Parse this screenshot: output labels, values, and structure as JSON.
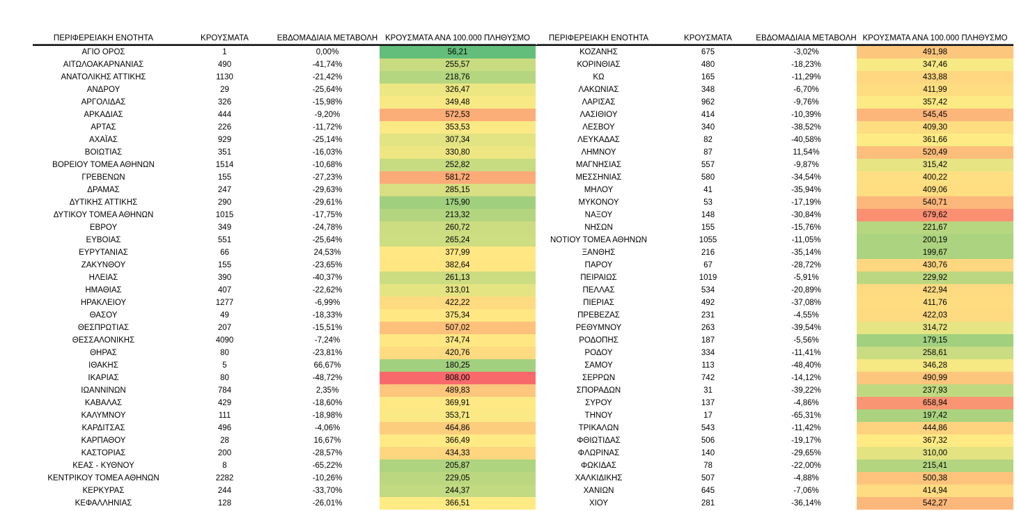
{
  "page": {
    "background": "#ffffff"
  },
  "chart_data": {
    "type": "table",
    "title": "",
    "columns": [
      "ΠΕΡΙΦΕΡΕΙΑΚΗ ΕΝΟΤΗΤΑ",
      "ΚΡΟΥΣΜΑΤΑ",
      "ΕΒΔΟΜΑΔΙΑΙΑ ΜΕΤΑΒΟΛΗ",
      "ΚΡΟΥΣΜΑΤΑ ΑΝΑ 100.000 ΠΛΗΘΥΣΜΟ"
    ],
    "heatmap": {
      "applies_to_column": "ΚΡΟΥΣΜΑΤΑ ΑΝΑ 100.000 ΠΛΗΘΥΣΜΟ",
      "min": 56.21,
      "mid": 364.08,
      "max": 808.0,
      "min_color": "#63BE7B",
      "mid_color": "#FFEB84",
      "max_color": "#F8696B"
    },
    "tables": [
      {
        "rows": [
          [
            "ΑΓΙΟ ΟΡΟΣ",
            "1",
            "0,00%",
            56.21
          ],
          [
            "ΑΙΤΩΛΟΑΚΑΡΝΑΝΙΑΣ",
            "490",
            "-41,74%",
            255.57
          ],
          [
            "ΑΝΑΤΟΛΙΚΗΣ ΑΤΤΙΚΗΣ",
            "1130",
            "-21,42%",
            218.76
          ],
          [
            "ΑΝΔΡΟΥ",
            "29",
            "-25,64%",
            326.47
          ],
          [
            "ΑΡΓΟΛΙΔΑΣ",
            "326",
            "-15,98%",
            349.48
          ],
          [
            "ΑΡΚΑΔΙΑΣ",
            "444",
            "-9,20%",
            572.53
          ],
          [
            "ΑΡΤΑΣ",
            "226",
            "-11,72%",
            353.53
          ],
          [
            "ΑΧΑΪΑΣ",
            "929",
            "-25,14%",
            307.34
          ],
          [
            "ΒΟΙΩΤΙΑΣ",
            "351",
            "-16,03%",
            330.8
          ],
          [
            "ΒΟΡΕΙΟΥ ΤΟΜΕΑ ΑΘΗΝΩΝ",
            "1514",
            "-10,68%",
            252.82
          ],
          [
            "ΓΡΕΒΕΝΩΝ",
            "155",
            "-27,23%",
            581.72
          ],
          [
            "ΔΡΑΜΑΣ",
            "247",
            "-29,63%",
            285.15
          ],
          [
            "ΔΥΤΙΚΗΣ ΑΤΤΙΚΗΣ",
            "290",
            "-29,61%",
            175.9
          ],
          [
            "ΔΥΤΙΚΟΥ ΤΟΜΕΑ ΑΘΗΝΩΝ",
            "1015",
            "-17,75%",
            213.32
          ],
          [
            "ΕΒΡΟΥ",
            "349",
            "-24,78%",
            260.72
          ],
          [
            "ΕΥΒΟΙΑΣ",
            "551",
            "-25,64%",
            265.24
          ],
          [
            "ΕΥΡΥΤΑΝΙΑΣ",
            "66",
            "24,53%",
            377.99
          ],
          [
            "ΖΑΚΥΝΘΟΥ",
            "155",
            "-23,65%",
            382.64
          ],
          [
            "ΗΛΕΙΑΣ",
            "390",
            "-40,37%",
            261.13
          ],
          [
            "ΗΜΑΘΙΑΣ",
            "407",
            "-22,62%",
            313.01
          ],
          [
            "ΗΡΑΚΛΕΙΟΥ",
            "1277",
            "-6,99%",
            422.22
          ],
          [
            "ΘΑΣΟΥ",
            "49",
            "-18,33%",
            375.34
          ],
          [
            "ΘΕΣΠΡΩΤΙΑΣ",
            "207",
            "-15,51%",
            507.02
          ],
          [
            "ΘΕΣΣΑΛΟΝΙΚΗΣ",
            "4090",
            "-7,24%",
            374.74
          ],
          [
            "ΘΗΡΑΣ",
            "80",
            "-23,81%",
            420.76
          ],
          [
            "ΙΘΑΚΗΣ",
            "5",
            "66,67%",
            180.25
          ],
          [
            "ΙΚΑΡΙΑΣ",
            "80",
            "-48,72%",
            808.0
          ],
          [
            "ΙΩΑΝΝΙΝΩΝ",
            "784",
            "2,35%",
            489.83
          ],
          [
            "ΚΑΒΑΛΑΣ",
            "429",
            "-18,60%",
            369.91
          ],
          [
            "ΚΑΛΥΜΝΟΥ",
            "111",
            "-18,98%",
            353.71
          ],
          [
            "ΚΑΡΔΙΤΣΑΣ",
            "496",
            "-4,06%",
            464.86
          ],
          [
            "ΚΑΡΠΑΘΟΥ",
            "28",
            "16,67%",
            366.49
          ],
          [
            "ΚΑΣΤΟΡΙΑΣ",
            "200",
            "-28,57%",
            434.33
          ],
          [
            "ΚΕΑΣ - ΚΥΘΝΟΥ",
            "8",
            "-65,22%",
            205.87
          ],
          [
            "ΚΕΝΤΡΙΚΟΥ ΤΟΜΕΑ ΑΘΗΝΩΝ",
            "2282",
            "-10,26%",
            229.05
          ],
          [
            "ΚΕΡΚΥΡΑΣ",
            "244",
            "-33,70%",
            244.37
          ],
          [
            "ΚΕΦΑΛΛΗΝΙΑΣ",
            "128",
            "-26,01%",
            366.51
          ]
        ]
      },
      {
        "rows": [
          [
            "ΚΟΖΑΝΗΣ",
            "675",
            "-3,02%",
            491.98
          ],
          [
            "ΚΟΡΙΝΘΙΑΣ",
            "480",
            "-18,23%",
            347.46
          ],
          [
            "ΚΩ",
            "165",
            "-11,29%",
            433.88
          ],
          [
            "ΛΑΚΩΝΙΑΣ",
            "348",
            "-6,70%",
            411.99
          ],
          [
            "ΛΑΡΙΣΑΣ",
            "962",
            "-9,76%",
            357.42
          ],
          [
            "ΛΑΣΙΘΙΟΥ",
            "414",
            "-10,39%",
            545.45
          ],
          [
            "ΛΕΣΒΟΥ",
            "340",
            "-38,52%",
            409.3
          ],
          [
            "ΛΕΥΚΑΔΑΣ",
            "82",
            "-40,58%",
            361.66
          ],
          [
            "ΛΗΜΝΟΥ",
            "87",
            "11,54%",
            520.49
          ],
          [
            "ΜΑΓΝΗΣΙΑΣ",
            "557",
            "-9,87%",
            315.42
          ],
          [
            "ΜΕΣΣΗΝΙΑΣ",
            "580",
            "-34,54%",
            400.22
          ],
          [
            "ΜΗΛΟΥ",
            "41",
            "-35,94%",
            409.06
          ],
          [
            "ΜΥΚΟΝΟΥ",
            "53",
            "-17,19%",
            540.71
          ],
          [
            "ΝΑΞΟΥ",
            "148",
            "-30,84%",
            679.62
          ],
          [
            "ΝΗΣΩΝ",
            "155",
            "-15,76%",
            221.67
          ],
          [
            "ΝΟΤΙΟΥ ΤΟΜΕΑ ΑΘΗΝΩΝ",
            "1055",
            "-11,05%",
            200.19
          ],
          [
            "ΞΑΝΘΗΣ",
            "216",
            "-35,14%",
            199.67
          ],
          [
            "ΠΑΡΟΥ",
            "67",
            "-28,72%",
            430.76
          ],
          [
            "ΠΕΙΡΑΙΩΣ",
            "1019",
            "-5,91%",
            229.92
          ],
          [
            "ΠΕΛΛΑΣ",
            "534",
            "-20,89%",
            422.94
          ],
          [
            "ΠΙΕΡΙΑΣ",
            "492",
            "-37,08%",
            411.76
          ],
          [
            "ΠΡΕΒΕΖΑΣ",
            "231",
            "-4,55%",
            422.03
          ],
          [
            "ΡΕΘΥΜΝΟΥ",
            "263",
            "-39,54%",
            314.72
          ],
          [
            "ΡΟΔΟΠΗΣ",
            "187",
            "-5,56%",
            179.15
          ],
          [
            "ΡΟΔΟΥ",
            "334",
            "-11,41%",
            258.61
          ],
          [
            "ΣΑΜΟΥ",
            "113",
            "-48,40%",
            346.28
          ],
          [
            "ΣΕΡΡΩΝ",
            "742",
            "-14,12%",
            490.99
          ],
          [
            "ΣΠΟΡΑΔΩΝ",
            "31",
            "-39,22%",
            237.93
          ],
          [
            "ΣΥΡΟΥ",
            "137",
            "-4,86%",
            658.94
          ],
          [
            "ΤΗΝΟΥ",
            "17",
            "-65,31%",
            197.42
          ],
          [
            "ΤΡΙΚΑΛΩΝ",
            "543",
            "-11,42%",
            444.86
          ],
          [
            "ΦΘΙΩΤΙΔΑΣ",
            "506",
            "-19,17%",
            367.32
          ],
          [
            "ΦΛΩΡΙΝΑΣ",
            "140",
            "-29,65%",
            310.0
          ],
          [
            "ΦΩΚΙΔΑΣ",
            "78",
            "-22,00%",
            215.41
          ],
          [
            "ΧΑΛΚΙΔΙΚΗΣ",
            "507",
            "-4,88%",
            500.38
          ],
          [
            "ΧΑΝΙΩΝ",
            "645",
            "-7,06%",
            414.94
          ],
          [
            "ΧΙΟΥ",
            "281",
            "-36,14%",
            542.27
          ]
        ]
      }
    ]
  }
}
